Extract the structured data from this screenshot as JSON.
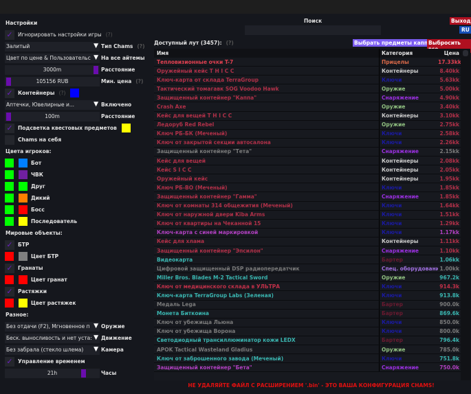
{
  "settings": {
    "title": "Настройки",
    "ignore_game_settings": {
      "label": "Игнорировать настройки игры",
      "help": "(?)",
      "checked": true
    },
    "chams_type": {
      "value": "Залитый",
      "label": "Тип Chams",
      "help": "(?)"
    },
    "all_items": {
      "value": "Цвет по цене & Пользовательс",
      "label": "На все айтемы"
    },
    "distance": {
      "value": "3000m",
      "label": "Расстояние",
      "level": 1.0
    },
    "min_price": {
      "value": "105156 RUB",
      "label": "Мин. цена",
      "help": "(?)",
      "level": 0.0
    },
    "containers": {
      "label": "Контейнеры",
      "help": "(?)",
      "checked": true,
      "color": "#0000ff"
    },
    "enabled": {
      "value": "Аптечки, Ювелирные и...",
      "label": "Включено"
    },
    "container_distance": {
      "value": "100m",
      "label": "Расстояние",
      "level": 0.0
    },
    "quest_highlight": {
      "label": "Подсветка квестовых предметов",
      "checked": true,
      "color": "#ffff00"
    },
    "chams_self": {
      "label": "Chams на себя",
      "checked": false
    }
  },
  "players": {
    "title": "Цвета игроков:",
    "items": [
      {
        "label": "Бот",
        "c1": "#00ff00",
        "c2": "#0080ff"
      },
      {
        "label": "ЧВК",
        "c1": "#00ff00",
        "c2": "#7020a0"
      },
      {
        "label": "Друг",
        "c1": "#00ff00",
        "c2": "#00ff00"
      },
      {
        "label": "Дикий",
        "c1": "#00ff00",
        "c2": "#ff8000"
      },
      {
        "label": "Босс",
        "c1": "#00ff00",
        "c2": "#ff0000"
      },
      {
        "label": "Последователь",
        "c1": "#00ff00",
        "c2": "#ffff00"
      }
    ]
  },
  "world": {
    "title": "Мировые объекты:",
    "btr": {
      "label": "БТР",
      "checked": true,
      "color_label": "Цвет БТР",
      "c1": "#ff0000",
      "c2": "#808080"
    },
    "grenades": {
      "label": "Гранаты",
      "checked": true,
      "color_label": "Цвет гранат",
      "c1": "#ff0000",
      "c2": "#ff0000"
    },
    "tripwires": {
      "label": "Растяжки",
      "checked": true,
      "color_label": "Цвет растяжек",
      "c1": "#ff0000",
      "c2": "#ffff00"
    }
  },
  "misc": {
    "title": "Разное:",
    "weapon": {
      "value": "Без отдачи (F2), Мгновенное п",
      "label": "Оружие"
    },
    "movement": {
      "value": "Беск. выносливость и нет уста:",
      "label": "Движение"
    },
    "camera": {
      "value": "Без забрала (стекло шлема)",
      "label": "Камера"
    },
    "time_control": {
      "label": "Управление временем",
      "checked": true
    },
    "hours": {
      "value": "21h",
      "label": "Часы",
      "level": 0.875
    }
  },
  "header": {
    "search_label": "Поиск",
    "search_value": "",
    "exit": "Выход",
    "lang": "RU"
  },
  "loot": {
    "title": "Доступный лут (3457):",
    "help": "(?)",
    "select_kappa": "Выбрать предметы каппа",
    "drop_all": "Выбросить все",
    "columns": [
      "Имя",
      "Категория",
      "Цена"
    ],
    "rows": [
      {
        "name": "Тепловизионные очки T-7",
        "cat": "Прицелы",
        "price": "17.33kk",
        "nc": "#e04050",
        "cc": "#d86848",
        "pc": "#e04050"
      },
      {
        "name": "Оружейный кейс T H I C C",
        "cat": "Контейнеры",
        "price": "8.40kk",
        "nc": "#b03048",
        "cc": "#c8c8c8",
        "pc": "#b03048"
      },
      {
        "name": "Ключ-карта от склада TerraGroup",
        "cat": "Ключи",
        "price": "5.63kk",
        "nc": "#b03048",
        "cc": "#1a1aa0",
        "pc": "#b03048"
      },
      {
        "name": "Тактический томагавк SOG Voodoo Hawk",
        "cat": "Оружие",
        "price": "5.00kk",
        "nc": "#b03048",
        "cc": "#90c080",
        "pc": "#b03048"
      },
      {
        "name": "Защищенный контейнер \"Каппа\"",
        "cat": "Снаряжение",
        "price": "4.90kk",
        "nc": "#b03048",
        "cc": "#9a30e0",
        "pc": "#b03048"
      },
      {
        "name": "Crash Axe",
        "cat": "Оружие",
        "price": "3.40kk",
        "nc": "#b03048",
        "cc": "#90c080",
        "pc": "#b03048"
      },
      {
        "name": "Кейс для вещей T H I C C",
        "cat": "Контейнеры",
        "price": "3.10kk",
        "nc": "#b03048",
        "cc": "#c8c8c8",
        "pc": "#b03048"
      },
      {
        "name": "Ледоруб Red Rebel",
        "cat": "Оружие",
        "price": "2.75kk",
        "nc": "#b03048",
        "cc": "#90c080",
        "pc": "#b03048"
      },
      {
        "name": "Ключ РБ-БК (Меченый)",
        "cat": "Ключи",
        "price": "2.58kk",
        "nc": "#b03048",
        "cc": "#1a1aa0",
        "pc": "#b03048"
      },
      {
        "name": "Ключ от закрытой секции автосалона",
        "cat": "Ключи",
        "price": "2.26kk",
        "nc": "#b03048",
        "cc": "#1a1aa0",
        "pc": "#b03048"
      },
      {
        "name": "Защищенный контейнер \"Тета\"",
        "cat": "Снаряжение",
        "price": "2.15kk",
        "nc": "#7a7a7a",
        "cc": "#9a30e0",
        "pc": "#7a7a7a"
      },
      {
        "name": "Кейс для вещей",
        "cat": "Контейнеры",
        "price": "2.08kk",
        "nc": "#b03048",
        "cc": "#c8c8c8",
        "pc": "#b03048"
      },
      {
        "name": "Кейс S I C C",
        "cat": "Контейнеры",
        "price": "2.05kk",
        "nc": "#b03048",
        "cc": "#c8c8c8",
        "pc": "#b03048"
      },
      {
        "name": "Оружейный кейс",
        "cat": "Контейнеры",
        "price": "1.95kk",
        "nc": "#b03048",
        "cc": "#c8c8c8",
        "pc": "#b03048"
      },
      {
        "name": "Ключ РБ-ВО (Меченый)",
        "cat": "Ключи",
        "price": "1.85kk",
        "nc": "#b03048",
        "cc": "#1a1aa0",
        "pc": "#b03048"
      },
      {
        "name": "Защищенный контейнер \"Гамма\"",
        "cat": "Снаряжение",
        "price": "1.85kk",
        "nc": "#b03048",
        "cc": "#9a30e0",
        "pc": "#b03048"
      },
      {
        "name": "Ключ от комнаты 314 общежития (Меченый)",
        "cat": "Ключи",
        "price": "1.64kk",
        "nc": "#b03048",
        "cc": "#1a1aa0",
        "pc": "#b03048"
      },
      {
        "name": "Ключ от наружной двери Kiba Arms",
        "cat": "Ключи",
        "price": "1.51kk",
        "nc": "#b03048",
        "cc": "#1a1aa0",
        "pc": "#b03048"
      },
      {
        "name": "Ключ от квартиры на Чеканной 15",
        "cat": "Ключи",
        "price": "1.29kk",
        "nc": "#b03048",
        "cc": "#1a1aa0",
        "pc": "#b03048"
      },
      {
        "name": "Ключ-карта с синей маркировкой",
        "cat": "Ключи",
        "price": "1.17kk",
        "nc": "#b040c0",
        "cc": "#1a1aa0",
        "pc": "#b040c0"
      },
      {
        "name": "Кейс для хлама",
        "cat": "Контейнеры",
        "price": "1.11kk",
        "nc": "#b03048",
        "cc": "#c8c8c8",
        "pc": "#b03048"
      },
      {
        "name": "Защищенный контейнер \"Эпсилон\"",
        "cat": "Снаряжение",
        "price": "1.10kk",
        "nc": "#b03048",
        "cc": "#9a30e0",
        "pc": "#b03048"
      },
      {
        "name": "Видеокарта",
        "cat": "Бартер",
        "price": "1.06kk",
        "nc": "#3ab5b0",
        "cc": "#6a1a30",
        "pc": "#3ab5b0"
      },
      {
        "name": "Цифровой защищенный DSP радиопередатчик",
        "cat": "Спец. оборудование",
        "price": "1.00kk",
        "nc": "#7a7a7a",
        "cc": "#a070e0",
        "pc": "#7a7a7a"
      },
      {
        "name": "Miller Bros. Blades M-2 Tactical Sword",
        "cat": "Оружие",
        "price": "967.2k",
        "nc": "#3ab5b0",
        "cc": "#90c080",
        "pc": "#3ab5b0"
      },
      {
        "name": "Ключ от медицинского склада в УЛЬТРА",
        "cat": "Ключи",
        "price": "914.3k",
        "nc": "#c03048",
        "cc": "#1a1aa0",
        "pc": "#c03048"
      },
      {
        "name": "Ключ-карта TerraGroup Labs (Зеленая)",
        "cat": "Ключи",
        "price": "913.8k",
        "nc": "#3ab5b0",
        "cc": "#1a1aa0",
        "pc": "#3ab5b0"
      },
      {
        "name": "Медаль Lega",
        "cat": "Бартер",
        "price": "900.0k",
        "nc": "#7a7a7a",
        "cc": "#6a1a30",
        "pc": "#7a7a7a"
      },
      {
        "name": "Монета Биткоина",
        "cat": "Бартер",
        "price": "869.6k",
        "nc": "#3ab5b0",
        "cc": "#6a1a30",
        "pc": "#3ab5b0"
      },
      {
        "name": "Ключ от убежища Льюна",
        "cat": "Ключи",
        "price": "850.0k",
        "nc": "#7a7a7a",
        "cc": "#1a1aa0",
        "pc": "#7a7a7a"
      },
      {
        "name": "Ключ от убежища Ворона",
        "cat": "Ключи",
        "price": "800.0k",
        "nc": "#7a7a7a",
        "cc": "#1a1aa0",
        "pc": "#7a7a7a"
      },
      {
        "name": "Светодиодный трансиллюминатор кожи LEDX",
        "cat": "Бартер",
        "price": "796.4k",
        "nc": "#3ab5b0",
        "cc": "#6a1a30",
        "pc": "#3ab5b0"
      },
      {
        "name": "APOK Tactical Wasteland Gladius",
        "cat": "Оружие",
        "price": "785.0k",
        "nc": "#7a7a7a",
        "cc": "#90c080",
        "pc": "#7a7a7a"
      },
      {
        "name": "Ключ от заброшенного завода (Меченый)",
        "cat": "Ключи",
        "price": "751.8k",
        "nc": "#3ab5b0",
        "cc": "#1a1aa0",
        "pc": "#3ab5b0"
      },
      {
        "name": "Защищенный контейнер \"Бета\"",
        "cat": "Снаряжение",
        "price": "750.0k",
        "nc": "#b040c0",
        "cc": "#9a30e0",
        "pc": "#b040c0"
      }
    ]
  },
  "footer": "НЕ УДАЛЯЙТЕ ФАЙЛ С РАСШИРЕНИЕМ '.bin' - ЭТО ВАША КОНФИГУРАЦИЯ CHAMS!"
}
